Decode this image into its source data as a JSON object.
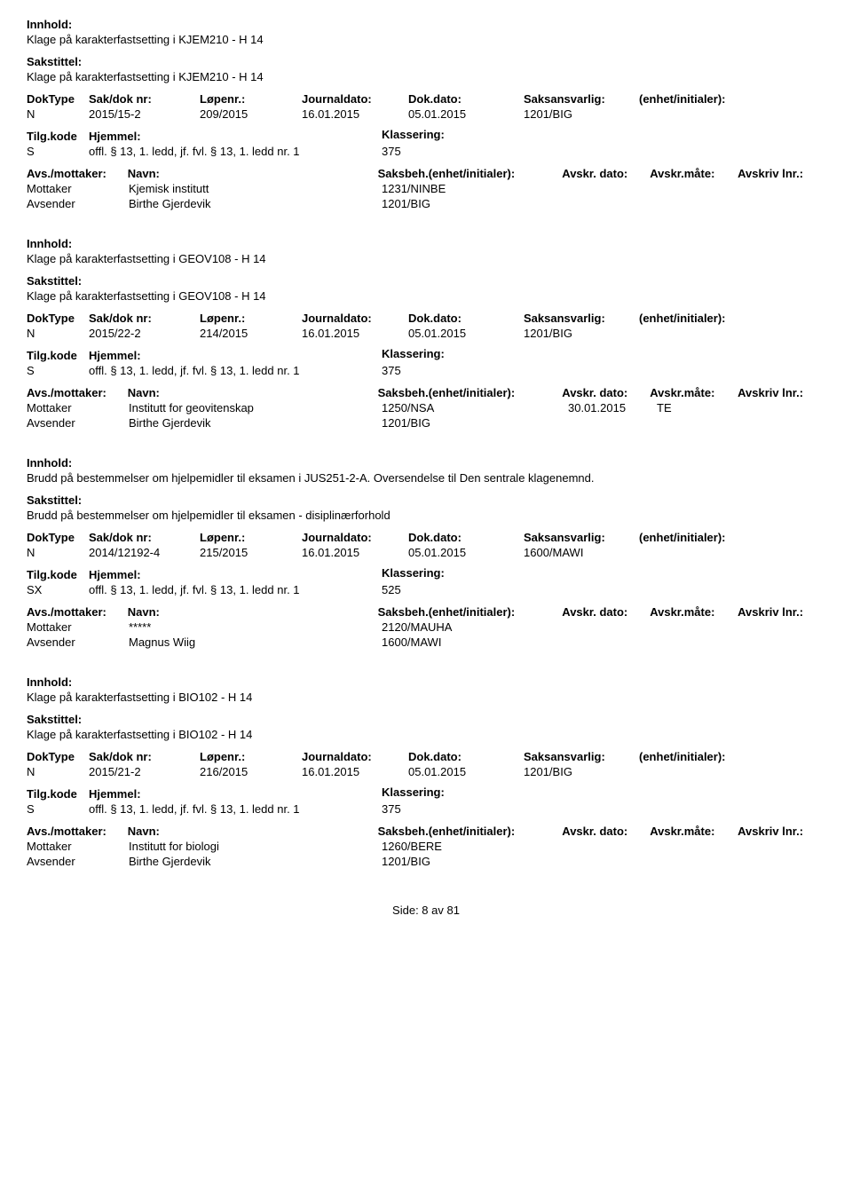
{
  "labels": {
    "innhold": "Innhold:",
    "sakstittel": "Sakstittel:",
    "doktype": "DokType",
    "sakdoknr": "Sak/dok nr:",
    "lopenr": "Løpenr.:",
    "journaldato": "Journaldato:",
    "dokdato": "Dok.dato:",
    "saksansvarlig": "Saksansvarlig:",
    "enhet": "(enhet/initialer):",
    "tilgkode": "Tilg.kode",
    "hjemmel": "Hjemmel:",
    "klassering": "Klassering:",
    "avsmottaker": "Avs./mottaker:",
    "navn": "Navn:",
    "saksbeh": "Saksbeh.(enhet/initialer):",
    "avskrdato": "Avskr. dato:",
    "avskrmate": "Avskr.måte:",
    "avskrivlnr": "Avskriv lnr.:",
    "mottaker": "Mottaker",
    "avsender": "Avsender"
  },
  "records": [
    {
      "innhold": "Klage på karakterfastsetting i KJEM210 - H 14",
      "sakstittel": "Klage på karakterfastsetting i KJEM210 - H 14",
      "doktype": "N",
      "sakdoknr": "2015/15-2",
      "lopenr": "209/2015",
      "journaldato": "16.01.2015",
      "dokdato": "05.01.2015",
      "saksansvarlig": "1201/BIG",
      "tilgkode": "S",
      "hjemmel": "offl. § 13, 1. ledd, jf. fvl. § 13, 1. ledd nr. 1",
      "klassering": "375",
      "parties": [
        {
          "role": "Mottaker",
          "navn": "Kjemisk institutt",
          "saksbeh": "1231/NINBE",
          "avskrdato": "",
          "avskrmate": ""
        },
        {
          "role": "Avsender",
          "navn": "Birthe Gjerdevik",
          "saksbeh": "1201/BIG",
          "avskrdato": "",
          "avskrmate": ""
        }
      ]
    },
    {
      "innhold": "Klage på karakterfastsetting i GEOV108 - H 14",
      "sakstittel": "Klage på karakterfastsetting i GEOV108 - H 14",
      "doktype": "N",
      "sakdoknr": "2015/22-2",
      "lopenr": "214/2015",
      "journaldato": "16.01.2015",
      "dokdato": "05.01.2015",
      "saksansvarlig": "1201/BIG",
      "tilgkode": "S",
      "hjemmel": "offl. § 13, 1. ledd, jf. fvl. § 13, 1. ledd nr. 1",
      "klassering": "375",
      "parties": [
        {
          "role": "Mottaker",
          "navn": "Institutt for geovitenskap",
          "saksbeh": "1250/NSA",
          "avskrdato": "30.01.2015",
          "avskrmate": "TE"
        },
        {
          "role": "Avsender",
          "navn": "Birthe Gjerdevik",
          "saksbeh": "1201/BIG",
          "avskrdato": "",
          "avskrmate": ""
        }
      ]
    },
    {
      "innhold": "Brudd på bestemmelser om hjelpemidler til eksamen i JUS251-2-A. Oversendelse til Den sentrale klagenemnd.",
      "sakstittel": "Brudd på bestemmelser om hjelpemidler til eksamen - disiplinærforhold",
      "doktype": "N",
      "sakdoknr": "2014/12192-4",
      "lopenr": "215/2015",
      "journaldato": "16.01.2015",
      "dokdato": "05.01.2015",
      "saksansvarlig": "1600/MAWI",
      "tilgkode": "SX",
      "hjemmel": "offl. § 13, 1. ledd, jf. fvl. § 13, 1. ledd nr. 1",
      "klassering": "525",
      "parties": [
        {
          "role": "Mottaker",
          "navn": "*****",
          "saksbeh": "2120/MAUHA",
          "avskrdato": "",
          "avskrmate": ""
        },
        {
          "role": "Avsender",
          "navn": "Magnus Wiig",
          "saksbeh": "1600/MAWI",
          "avskrdato": "",
          "avskrmate": ""
        }
      ]
    },
    {
      "innhold": "Klage på karakterfastsetting i BIO102 - H 14",
      "sakstittel": "Klage på karakterfastsetting i BIO102 - H 14",
      "doktype": "N",
      "sakdoknr": "2015/21-2",
      "lopenr": "216/2015",
      "journaldato": "16.01.2015",
      "dokdato": "05.01.2015",
      "saksansvarlig": "1201/BIG",
      "tilgkode": "S",
      "hjemmel": "offl. § 13, 1. ledd, jf. fvl. § 13, 1. ledd nr. 1",
      "klassering": "375",
      "parties": [
        {
          "role": "Mottaker",
          "navn": "Institutt for biologi",
          "saksbeh": "1260/BERE",
          "avskrdato": "",
          "avskrmate": ""
        },
        {
          "role": "Avsender",
          "navn": "Birthe Gjerdevik",
          "saksbeh": "1201/BIG",
          "avskrdato": "",
          "avskrmate": ""
        }
      ]
    }
  ],
  "footer": "Side: 8 av 81"
}
